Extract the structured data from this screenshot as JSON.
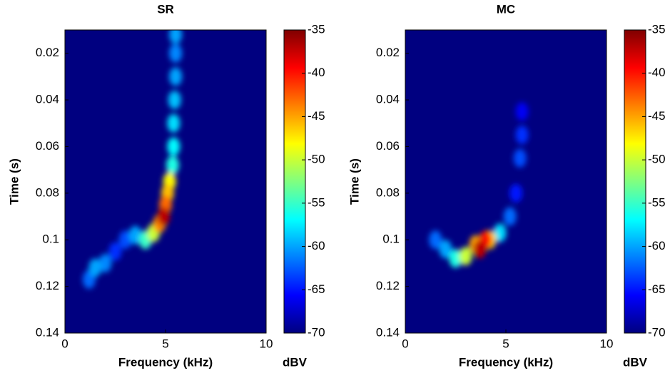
{
  "chart_data": [
    {
      "type": "spectrogram",
      "title": "SR",
      "xlabel": "Frequency (kHz)",
      "ylabel": "Time (s)",
      "xlim": [
        0,
        10
      ],
      "xticks": [
        0,
        5,
        10
      ],
      "ylim": [
        0.01,
        0.14
      ],
      "yticks": [
        0.02,
        0.04,
        0.06,
        0.08,
        0.1,
        0.12,
        0.14
      ],
      "y_reversed": true,
      "colormap": "jet",
      "clim": [
        -70,
        -35
      ],
      "cticks": [
        -35,
        -40,
        -45,
        -50,
        -55,
        -60,
        -65,
        -70
      ],
      "colorbar_label": "dBV",
      "x": [
        2.5,
        1.2,
        3.0,
        2.0,
        5.5,
        5.5,
        1.5,
        5.5,
        3.5,
        5.45,
        5.4,
        5.4,
        5.35,
        4.0,
        4.4,
        5.2,
        5.1,
        4.7,
        5.0,
        4.9
      ],
      "y": [
        0.105,
        0.117,
        0.1,
        0.11,
        0.02,
        0.012,
        0.112,
        0.03,
        0.098,
        0.04,
        0.05,
        0.06,
        0.068,
        0.1,
        0.097,
        0.075,
        0.08,
        0.093,
        0.085,
        0.09
      ],
      "values": [
        -64,
        -62,
        -63,
        -61,
        -61,
        -60,
        -60,
        -60,
        -60,
        -59,
        -58,
        -57,
        -56,
        -55,
        -50,
        -48,
        -46,
        -44,
        -43,
        -37
      ]
    },
    {
      "type": "spectrogram",
      "title": "MC",
      "xlabel": "Frequency (kHz)",
      "ylabel": "Time (s)",
      "xlim": [
        0,
        10
      ],
      "xticks": [
        0,
        5,
        10
      ],
      "ylim": [
        0.01,
        0.14
      ],
      "yticks": [
        0.02,
        0.04,
        0.06,
        0.08,
        0.1,
        0.12,
        0.14
      ],
      "y_reversed": true,
      "colormap": "jet",
      "clim": [
        -70,
        -35
      ],
      "cticks": [
        -35,
        -40,
        -45,
        -50,
        -55,
        -60,
        -65,
        -70
      ],
      "colorbar_label": "dBV",
      "x": [
        5.8,
        5.5,
        5.8,
        5.7,
        5.2,
        1.5,
        2.0,
        4.7,
        2.5,
        3.0,
        4.2,
        3.5,
        4.0,
        3.7
      ],
      "y": [
        0.045,
        0.08,
        0.055,
        0.065,
        0.09,
        0.1,
        0.104,
        0.097,
        0.108,
        0.107,
        0.1,
        0.102,
        0.1,
        0.104
      ],
      "values": [
        -66,
        -65,
        -64,
        -63,
        -62,
        -62,
        -60,
        -58,
        -56,
        -50,
        -47,
        -45,
        -40,
        -37
      ]
    }
  ]
}
